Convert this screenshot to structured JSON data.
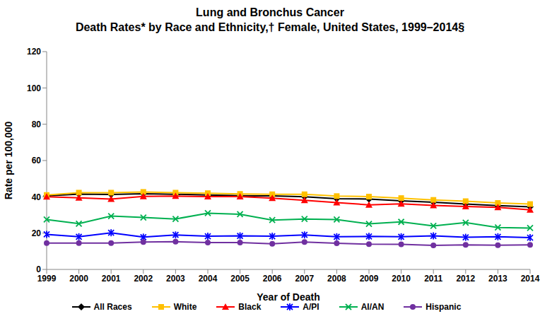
{
  "chart_data": {
    "type": "line",
    "title": "Lung and Bronchus Cancer",
    "subtitle": "Death Rates* by Race and Ethnicity,† Female, United States, 1999–2014§",
    "x_label": "Year of Death",
    "y_label": "Rate per 100,000",
    "categories": [
      "1999",
      "2000",
      "2001",
      "2002",
      "2003",
      "2004",
      "2005",
      "2006",
      "2007",
      "2008",
      "2009",
      "2010",
      "2011",
      "2012",
      "2013",
      "2014"
    ],
    "series": [
      {
        "name": "All Races",
        "color": "#000000",
        "marker": "diamond",
        "values": [
          40.5,
          41.5,
          41.3,
          41.7,
          41.4,
          41.0,
          40.6,
          40.5,
          40.0,
          39.0,
          38.8,
          37.8,
          37.0,
          36.0,
          35.2,
          34.5
        ]
      },
      {
        "name": "White",
        "color": "#FFC000",
        "marker": "square",
        "values": [
          41.0,
          42.3,
          42.3,
          42.7,
          42.3,
          42.0,
          41.6,
          41.4,
          41.4,
          40.4,
          40.1,
          39.3,
          38.3,
          37.6,
          36.6,
          36.0
        ]
      },
      {
        "name": "Black",
        "color": "#FF0000",
        "marker": "triangle",
        "values": [
          40.0,
          39.4,
          38.8,
          40.2,
          40.4,
          40.1,
          40.1,
          39.3,
          38.1,
          36.8,
          35.6,
          36.1,
          35.3,
          34.7,
          34.2,
          32.8
        ]
      },
      {
        "name": "A/PI",
        "color": "#0000FF",
        "marker": "asterisk",
        "values": [
          19.3,
          18.0,
          20.2,
          17.8,
          19.0,
          18.3,
          18.5,
          18.3,
          19.0,
          18.0,
          18.2,
          18.0,
          18.5,
          17.7,
          18.0,
          17.5
        ]
      },
      {
        "name": "AI/AN",
        "color": "#00B050",
        "marker": "x",
        "values": [
          27.5,
          25.2,
          29.4,
          28.6,
          27.8,
          31.0,
          30.4,
          27.2,
          27.8,
          27.5,
          25.1,
          26.2,
          24.0,
          25.8,
          23.1,
          22.8
        ]
      },
      {
        "name": "Hispanic",
        "color": "#7030A0",
        "marker": "circle",
        "values": [
          14.5,
          14.5,
          14.5,
          15.1,
          15.3,
          14.8,
          14.8,
          14.1,
          15.1,
          14.4,
          13.9,
          13.8,
          13.2,
          13.5,
          13.3,
          13.5
        ]
      }
    ],
    "ylim": [
      0,
      120
    ],
    "yticks": [
      0,
      20,
      40,
      60,
      80,
      100,
      120
    ],
    "grid": false,
    "legend": "bottom"
  }
}
